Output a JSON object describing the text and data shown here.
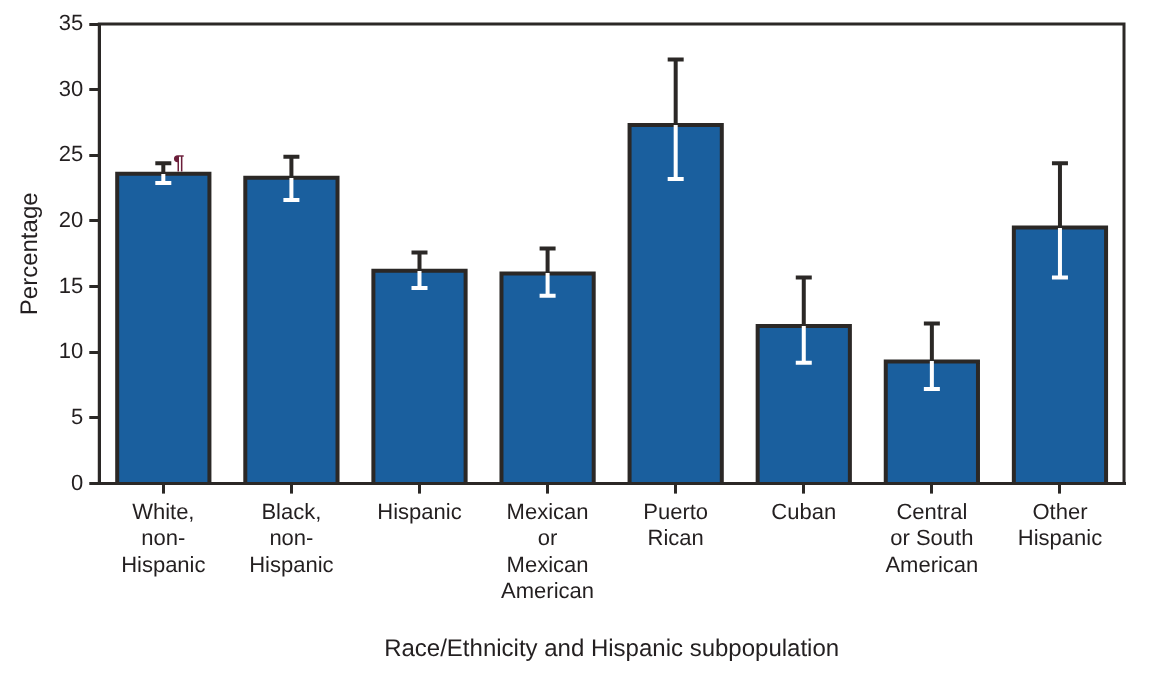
{
  "chart_data": {
    "type": "bar",
    "ylabel": "Percentage",
    "xlabel": "Race/Ethnicity and Hispanic subpopulation",
    "categories": [
      "White, non-Hispanic",
      "Black, non-Hispanic",
      "Hispanic",
      "Mexican or Mexican American",
      "Puerto Rican",
      "Cuban",
      "Central or South American",
      "Other Hispanic"
    ],
    "values": [
      23.6,
      23.3,
      16.2,
      16.0,
      27.3,
      12.0,
      9.3,
      19.5
    ],
    "errors": [
      [
        22.9,
        24.4
      ],
      [
        21.6,
        24.9
      ],
      [
        14.9,
        17.6
      ],
      [
        14.3,
        17.9
      ],
      [
        23.2,
        32.3
      ],
      [
        9.2,
        15.7
      ],
      [
        7.2,
        12.2
      ],
      [
        15.7,
        24.4
      ]
    ],
    "color": "#1a5f9e",
    "ylim": [
      0,
      35
    ],
    "yticks": [
      0,
      5,
      10,
      15,
      20,
      25,
      30,
      35
    ],
    "annotations": [
      {
        "text": "¶",
        "x": "White, non-Hispanic",
        "y": 24.4
      }
    ],
    "grid": false,
    "legend": false
  }
}
